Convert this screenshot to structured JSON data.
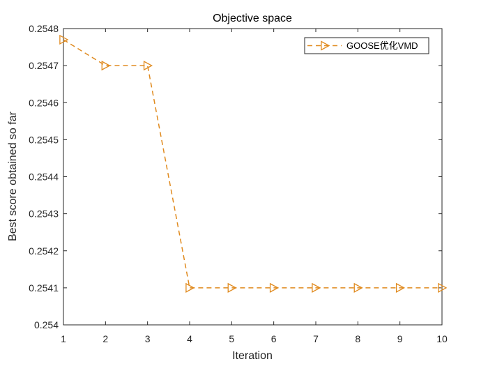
{
  "chart_data": {
    "type": "line",
    "title": "Objective space",
    "xlabel": "Iteration",
    "ylabel": "Best score obtained so far",
    "xlim": [
      1,
      10
    ],
    "ylim": [
      0.254,
      0.2548
    ],
    "xticks": [
      "1",
      "2",
      "3",
      "4",
      "5",
      "6",
      "7",
      "8",
      "9",
      "10"
    ],
    "xtick_values": [
      1,
      2,
      3,
      4,
      5,
      6,
      7,
      8,
      9,
      10
    ],
    "yticks": [
      "0.254",
      "0.2541",
      "0.2542",
      "0.2543",
      "0.2544",
      "0.2545",
      "0.2546",
      "0.2547",
      "0.2548"
    ],
    "ytick_values": [
      0.254,
      0.2541,
      0.2542,
      0.2543,
      0.2544,
      0.2545,
      0.2546,
      0.2547,
      0.2548
    ],
    "grid": false,
    "legend_position": "top-right",
    "x": [
      1,
      2,
      3,
      4,
      5,
      6,
      7,
      8,
      9,
      10
    ],
    "series": [
      {
        "name": "GOOSE优化VMD",
        "values": [
          0.25477,
          0.2547,
          0.2547,
          0.2541,
          0.2541,
          0.2541,
          0.2541,
          0.2541,
          0.2541,
          0.2541
        ],
        "color": "#E08A1E",
        "line_style": "dashed",
        "marker": "right-triangle"
      }
    ]
  }
}
